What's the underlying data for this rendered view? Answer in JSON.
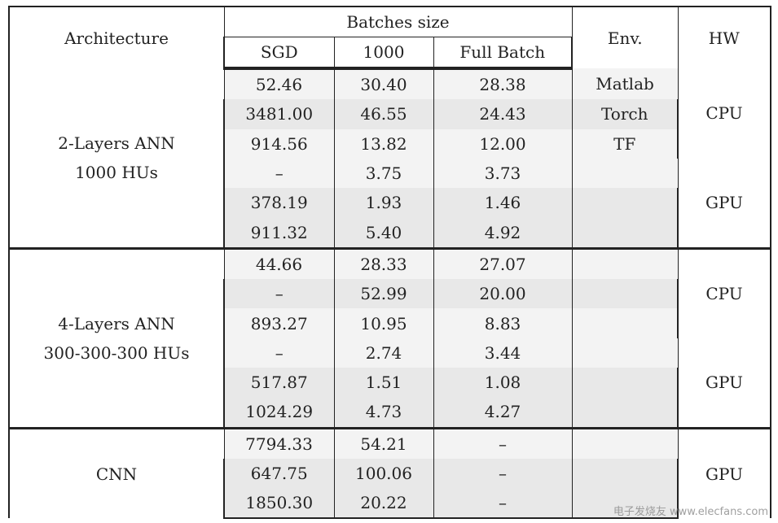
{
  "header": {
    "architecture": "Architecture",
    "batches_size": "Batches size",
    "sgd": "SGD",
    "b1000": "1000",
    "full_batch": "Full Batch",
    "env": "Env.",
    "hw": "HW"
  },
  "groups": [
    {
      "arch_line1": "2-Layers ANN",
      "arch_line2": "1000 HUs",
      "hw_cpu": "CPU",
      "hw_gpu": "GPU",
      "rows": [
        [
          "52.46",
          "30.40",
          "28.38",
          "Matlab"
        ],
        [
          "3481.00",
          "46.55",
          "24.43",
          "Torch"
        ],
        [
          "914.56",
          "13.82",
          "12.00",
          "TF"
        ],
        [
          "–",
          "3.75",
          "3.73",
          ""
        ],
        [
          "378.19",
          "1.93",
          "1.46",
          ""
        ],
        [
          "911.32",
          "5.40",
          "4.92",
          ""
        ]
      ]
    },
    {
      "arch_line1": "4-Layers ANN",
      "arch_line2": "300-300-300 HUs",
      "hw_cpu": "CPU",
      "hw_gpu": "GPU",
      "rows": [
        [
          "44.66",
          "28.33",
          "27.07",
          ""
        ],
        [
          "–",
          "52.99",
          "20.00",
          ""
        ],
        [
          "893.27",
          "10.95",
          "8.83",
          ""
        ],
        [
          "–",
          "2.74",
          "3.44",
          ""
        ],
        [
          "517.87",
          "1.51",
          "1.08",
          ""
        ],
        [
          "1024.29",
          "4.73",
          "4.27",
          ""
        ]
      ]
    },
    {
      "arch_line1": "CNN",
      "hw_gpu": "GPU",
      "rows": [
        [
          "7794.33",
          "54.21",
          "–",
          ""
        ],
        [
          "647.75",
          "100.06",
          "–",
          ""
        ],
        [
          "1850.30",
          "20.22",
          "–",
          ""
        ]
      ]
    }
  ],
  "watermark": "电子发烧友 www.elecfans.com"
}
